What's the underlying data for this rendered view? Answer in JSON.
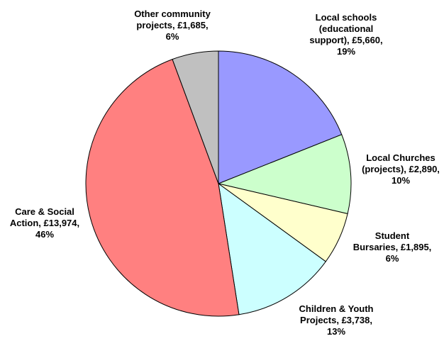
{
  "chart_data": {
    "type": "pie",
    "title": "",
    "start_angle_deg": 0,
    "direction": "clockwise",
    "legend": "none",
    "slices": [
      {
        "label_lines": [
          "Local schools",
          "(educational",
          "support), £5,660,",
          "19%"
        ],
        "category": "Local schools (educational support)",
        "value": 5660,
        "percent": "19%",
        "color": "#9999ff"
      },
      {
        "label_lines": [
          "Local Churches",
          "(projects), £2,890,",
          "10%"
        ],
        "category": "Local Churches (projects)",
        "value": 2890,
        "percent": "10%",
        "color": "#ccffcc"
      },
      {
        "label_lines": [
          "Student",
          "Bursaries, £1,895,",
          "6%"
        ],
        "category": "Student Bursaries",
        "value": 1895,
        "percent": "6%",
        "color": "#ffffcc"
      },
      {
        "label_lines": [
          "Children & Youth",
          "Projects, £3,738,",
          "13%"
        ],
        "category": "Children & Youth Projects",
        "value": 3738,
        "percent": "13%",
        "color": "#ccffff"
      },
      {
        "label_lines": [
          "Care & Social",
          "Action, £13,974,",
          "46%"
        ],
        "category": "Care & Social Action",
        "value": 13974,
        "percent": "46%",
        "color": "#ff8080"
      },
      {
        "label_lines": [
          "Other community",
          "projects, £1,685,",
          "6%"
        ],
        "category": "Other community projects",
        "value": 1685,
        "percent": "6%",
        "color": "#c0c0c0"
      }
    ]
  }
}
